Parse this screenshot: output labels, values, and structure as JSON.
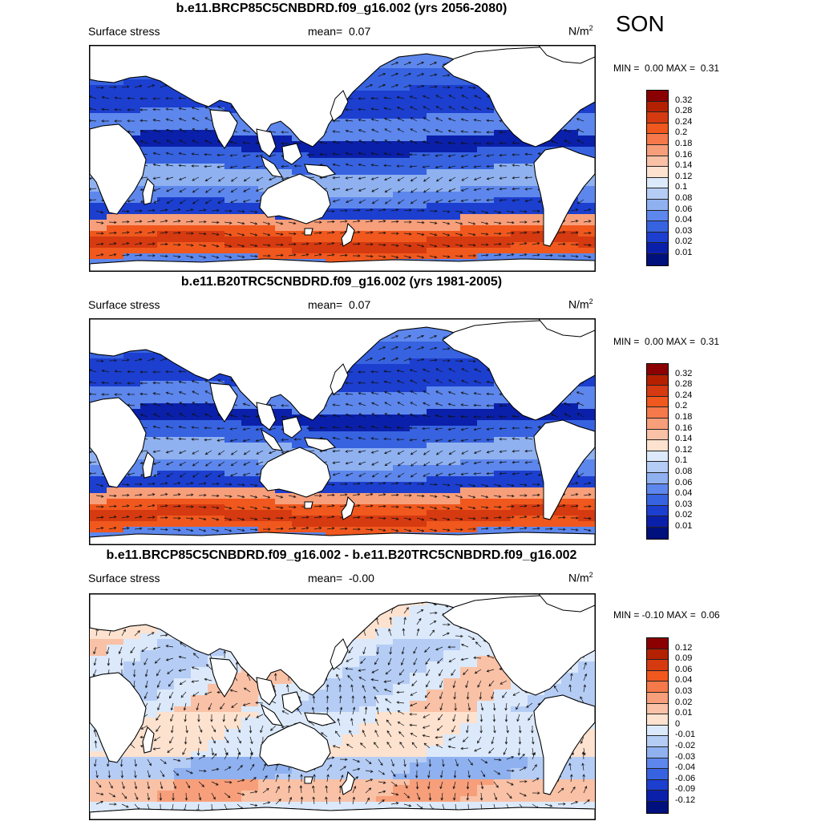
{
  "season": "SON",
  "panels": [
    {
      "title": "b.e11.BRCP85C5CNBDRD.f09_g16.002 (yrs 2056-2080)",
      "left_label": "Surface stress",
      "mean_label": "mean=",
      "mean_value": "0.07",
      "unit_main": "N/m",
      "unit_sup": "2",
      "minmax": "MIN =  0.00 MAX =  0.31",
      "colorbar_labels": [
        "0.32",
        "0.28",
        "0.24",
        "0.2",
        "0.18",
        "0.16",
        "0.14",
        "0.12",
        "0.1",
        "0.08",
        "0.06",
        "0.04",
        "0.03",
        "0.02",
        "0.01"
      ],
      "colorbar_colors": [
        "#8b0000",
        "#b42100",
        "#d63a10",
        "#f0581e",
        "#f5794a",
        "#f79f7a",
        "#f9c1a6",
        "#fde2cf",
        "#dce9fa",
        "#b5cdf5",
        "#8fb1f0",
        "#5d87ec",
        "#3763e0",
        "#1c3fcf",
        "#0a20aa",
        "#00107c"
      ],
      "field": "mean"
    },
    {
      "title": "b.e11.B20TRC5CNBDRD.f09_g16.002 (yrs 1981-2005)",
      "left_label": "Surface stress",
      "mean_label": "mean=",
      "mean_value": "0.07",
      "unit_main": "N/m",
      "unit_sup": "2",
      "minmax": "MIN =  0.00 MAX =  0.31",
      "colorbar_labels": [
        "0.32",
        "0.28",
        "0.24",
        "0.2",
        "0.18",
        "0.16",
        "0.14",
        "0.12",
        "0.1",
        "0.08",
        "0.06",
        "0.04",
        "0.03",
        "0.02",
        "0.01"
      ],
      "colorbar_colors": [
        "#8b0000",
        "#b42100",
        "#d63a10",
        "#f0581e",
        "#f5794a",
        "#f79f7a",
        "#f9c1a6",
        "#fde2cf",
        "#dce9fa",
        "#b5cdf5",
        "#8fb1f0",
        "#5d87ec",
        "#3763e0",
        "#1c3fcf",
        "#0a20aa",
        "#00107c"
      ],
      "field": "mean"
    },
    {
      "title": "b.e11.BRCP85C5CNBDRD.f09_g16.002 - b.e11.B20TRC5CNBDRD.f09_g16.002",
      "left_label": "Surface stress",
      "mean_label": "mean=",
      "mean_value": "-0.00",
      "unit_main": "N/m",
      "unit_sup": "2",
      "minmax": "MIN = -0.10 MAX =  0.06",
      "colorbar_labels": [
        "0.12",
        "0.09",
        "0.06",
        "0.04",
        "0.03",
        "0.02",
        "0.01",
        "0",
        "-0.01",
        "-0.02",
        "-0.03",
        "-0.04",
        "-0.06",
        "-0.09",
        "-0.12"
      ],
      "colorbar_colors": [
        "#8b0000",
        "#b42100",
        "#d63a10",
        "#f0581e",
        "#f5794a",
        "#f79f7a",
        "#f9c1a6",
        "#fde2cf",
        "#dce9fa",
        "#b5cdf5",
        "#8fb1f0",
        "#5d87ec",
        "#3763e0",
        "#1c3fcf",
        "#0a20aa",
        "#00107c"
      ],
      "field": "diff"
    }
  ]
}
